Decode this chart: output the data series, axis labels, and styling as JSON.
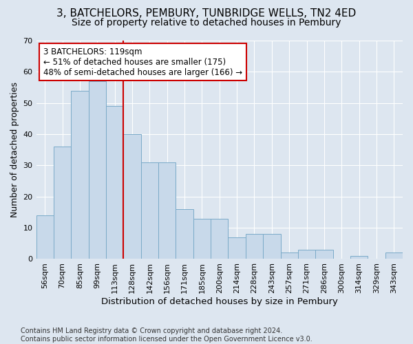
{
  "title": "3, BATCHELORS, PEMBURY, TUNBRIDGE WELLS, TN2 4ED",
  "subtitle": "Size of property relative to detached houses in Pembury",
  "xlabel": "Distribution of detached houses by size in Pembury",
  "ylabel": "Number of detached properties",
  "categories": [
    "56sqm",
    "70sqm",
    "85sqm",
    "99sqm",
    "113sqm",
    "128sqm",
    "142sqm",
    "156sqm",
    "171sqm",
    "185sqm",
    "200sqm",
    "214sqm",
    "228sqm",
    "243sqm",
    "257sqm",
    "271sqm",
    "286sqm",
    "300sqm",
    "314sqm",
    "329sqm",
    "343sqm"
  ],
  "values": [
    14,
    36,
    54,
    57,
    49,
    40,
    31,
    31,
    16,
    13,
    13,
    7,
    8,
    8,
    2,
    3,
    3,
    0,
    1,
    0,
    2
  ],
  "bar_color": "#c8d9ea",
  "bar_edge_color": "#7aaac8",
  "vline_x_index": 4,
  "vline_color": "#cc0000",
  "annotation_text": "3 BATCHELORS: 119sqm\n← 51% of detached houses are smaller (175)\n48% of semi-detached houses are larger (166) →",
  "annotation_box_color": "white",
  "annotation_box_edge_color": "#cc0000",
  "ylim": [
    0,
    70
  ],
  "yticks": [
    0,
    10,
    20,
    30,
    40,
    50,
    60,
    70
  ],
  "background_color": "#dde6f0",
  "footer_text": "Contains HM Land Registry data © Crown copyright and database right 2024.\nContains public sector information licensed under the Open Government Licence v3.0.",
  "title_fontsize": 11,
  "subtitle_fontsize": 10,
  "xlabel_fontsize": 9.5,
  "ylabel_fontsize": 9,
  "tick_fontsize": 8,
  "annotation_fontsize": 8.5,
  "footer_fontsize": 7
}
